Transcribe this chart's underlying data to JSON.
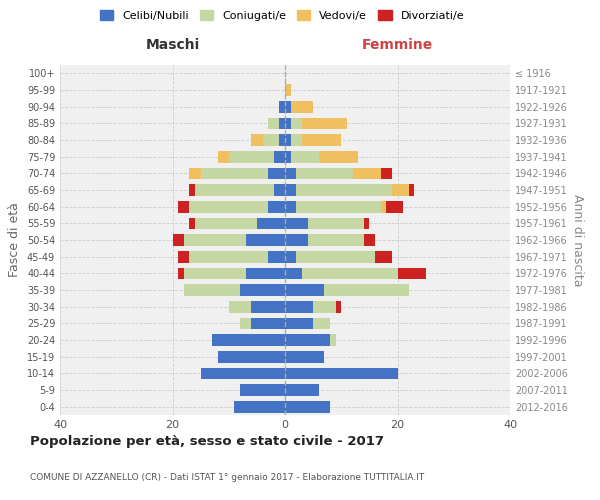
{
  "age_groups": [
    "0-4",
    "5-9",
    "10-14",
    "15-19",
    "20-24",
    "25-29",
    "30-34",
    "35-39",
    "40-44",
    "45-49",
    "50-54",
    "55-59",
    "60-64",
    "65-69",
    "70-74",
    "75-79",
    "80-84",
    "85-89",
    "90-94",
    "95-99",
    "100+"
  ],
  "birth_years": [
    "2012-2016",
    "2007-2011",
    "2002-2006",
    "1997-2001",
    "1992-1996",
    "1987-1991",
    "1982-1986",
    "1977-1981",
    "1972-1976",
    "1967-1971",
    "1962-1966",
    "1957-1961",
    "1952-1956",
    "1947-1951",
    "1942-1946",
    "1937-1941",
    "1932-1936",
    "1927-1931",
    "1922-1926",
    "1917-1921",
    "≤ 1916"
  ],
  "maschi": {
    "celibi": [
      9,
      8,
      15,
      12,
      13,
      6,
      6,
      8,
      7,
      3,
      7,
      5,
      3,
      2,
      3,
      2,
      1,
      1,
      1,
      0,
      0
    ],
    "coniugati": [
      0,
      0,
      0,
      0,
      0,
      2,
      4,
      10,
      11,
      14,
      11,
      11,
      14,
      14,
      12,
      8,
      3,
      2,
      0,
      0,
      0
    ],
    "vedovi": [
      0,
      0,
      0,
      0,
      0,
      0,
      0,
      0,
      0,
      0,
      0,
      0,
      0,
      0,
      2,
      2,
      2,
      0,
      0,
      0,
      0
    ],
    "divorziati": [
      0,
      0,
      0,
      0,
      0,
      0,
      0,
      0,
      1,
      2,
      2,
      1,
      2,
      1,
      0,
      0,
      0,
      0,
      0,
      0,
      0
    ]
  },
  "femmine": {
    "nubili": [
      8,
      6,
      20,
      7,
      8,
      5,
      5,
      7,
      3,
      2,
      4,
      4,
      2,
      2,
      2,
      1,
      1,
      1,
      1,
      0,
      0
    ],
    "coniugate": [
      0,
      0,
      0,
      0,
      1,
      3,
      4,
      15,
      17,
      14,
      10,
      10,
      15,
      17,
      10,
      5,
      2,
      2,
      0,
      0,
      0
    ],
    "vedove": [
      0,
      0,
      0,
      0,
      0,
      0,
      0,
      0,
      0,
      0,
      0,
      0,
      1,
      3,
      5,
      7,
      7,
      8,
      4,
      1,
      0
    ],
    "divorziate": [
      0,
      0,
      0,
      0,
      0,
      0,
      1,
      0,
      5,
      3,
      2,
      1,
      3,
      1,
      2,
      0,
      0,
      0,
      0,
      0,
      0
    ]
  },
  "colors": {
    "celibi": "#4472C4",
    "coniugati": "#c5d8a4",
    "vedovi": "#f0c060",
    "divorziati": "#cc2222"
  },
  "xlim": 40,
  "title": "Popolazione per età, sesso e stato civile - 2017",
  "subtitle": "COMUNE DI AZZANELLO (CR) - Dati ISTAT 1° gennaio 2017 - Elaborazione TUTTITALIA.IT",
  "ylabel_left": "Fasce di età",
  "ylabel_right": "Anni di nascita",
  "xlabel_left": "Maschi",
  "xlabel_right": "Femmine"
}
